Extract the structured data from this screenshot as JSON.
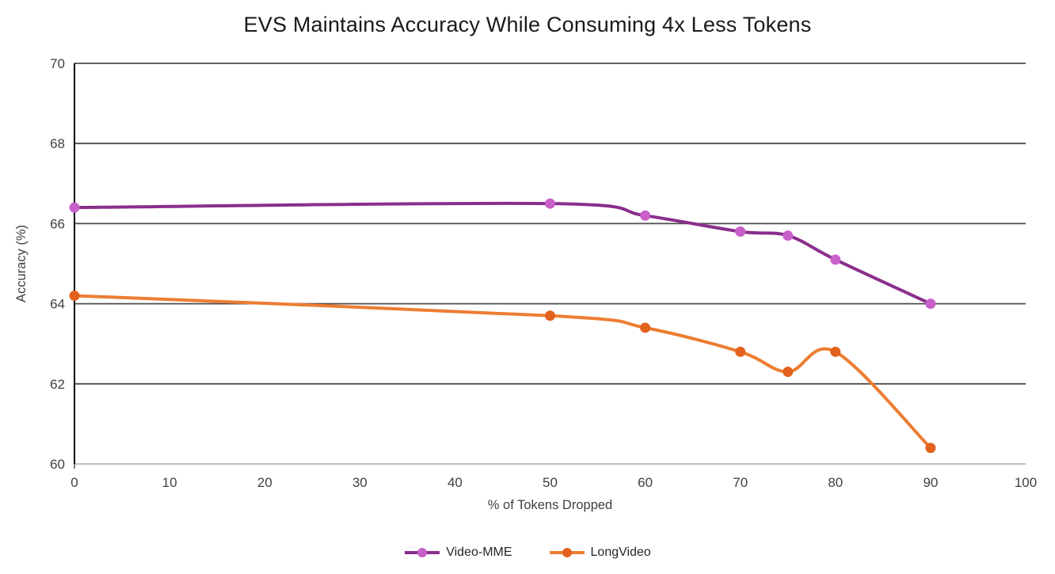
{
  "chart_data": {
    "type": "line",
    "title": "EVS Maintains Accuracy While Consuming 4x Less Tokens",
    "xlabel": "% of Tokens Dropped",
    "ylabel": "Accuracy (%)",
    "xlim": [
      0,
      100
    ],
    "ylim": [
      60,
      70
    ],
    "xticks": [
      0,
      10,
      20,
      30,
      40,
      50,
      60,
      70,
      80,
      90,
      100
    ],
    "yticks": [
      60,
      62,
      64,
      66,
      68,
      70
    ],
    "grid": "horizontal-only",
    "legend_position": "bottom-center",
    "x": [
      0,
      50,
      60,
      70,
      75,
      80,
      90
    ],
    "series": [
      {
        "name": "Video-MME",
        "values": [
          66.4,
          66.5,
          66.2,
          65.8,
          65.7,
          65.1,
          64.0
        ],
        "line_color": "#8A2E8C",
        "marker_color": "#C95FC9"
      },
      {
        "name": "LongVideo",
        "values": [
          64.2,
          63.7,
          63.4,
          62.8,
          62.3,
          62.8,
          60.4
        ],
        "line_color": "#ED7D31",
        "marker_color": "#E2621D"
      }
    ],
    "colors": {
      "gridline": "#4D4D4D",
      "axis_left": "#000000",
      "axis_bottom": "#BFBFBF",
      "tick_label": "#404040",
      "axis_title": "#404040",
      "title": "#1A1A1A"
    }
  }
}
